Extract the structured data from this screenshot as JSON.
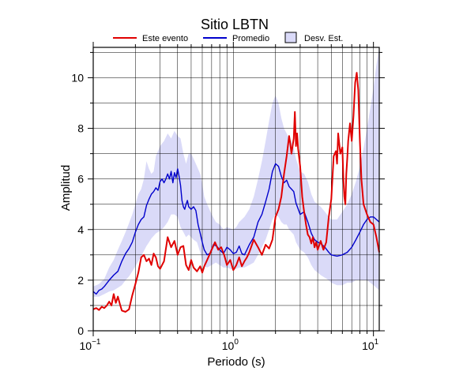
{
  "chart_data": {
    "type": "line",
    "title": "Sitio LBTN",
    "xlabel": "Periodo (s)",
    "ylabel": "Amplitud",
    "x_scale": "log",
    "xlim": [
      0.1,
      11
    ],
    "ylim": [
      0,
      11.2
    ],
    "x_ticks": [
      {
        "value": 0.1,
        "base": "10",
        "exp": "−1"
      },
      {
        "value": 1,
        "base": "10",
        "exp": "0"
      },
      {
        "value": 10,
        "base": "10",
        "exp": "1"
      }
    ],
    "y_ticks": [
      "0",
      "2",
      "4",
      "6",
      "8",
      "10"
    ],
    "grid": true,
    "legend_position": "top",
    "legend": [
      {
        "label": "Este evento",
        "kind": "line",
        "color": "#e00000"
      },
      {
        "label": "Promedio",
        "kind": "line",
        "color": "#0000cc"
      },
      {
        "label": "Desv. Est.",
        "kind": "band",
        "color": "#dadaf8"
      }
    ],
    "series": [
      {
        "name": "Este evento",
        "color": "#e00000",
        "points": [
          [
            0.1,
            0.85
          ],
          [
            0.105,
            0.9
          ],
          [
            0.11,
            0.82
          ],
          [
            0.115,
            0.95
          ],
          [
            0.12,
            0.9
          ],
          [
            0.125,
            1.0
          ],
          [
            0.13,
            1.15
          ],
          [
            0.135,
            1.0
          ],
          [
            0.14,
            1.45
          ],
          [
            0.145,
            1.1
          ],
          [
            0.15,
            1.35
          ],
          [
            0.155,
            1.05
          ],
          [
            0.16,
            0.8
          ],
          [
            0.17,
            0.75
          ],
          [
            0.18,
            0.85
          ],
          [
            0.19,
            1.4
          ],
          [
            0.2,
            1.85
          ],
          [
            0.21,
            2.3
          ],
          [
            0.22,
            2.9
          ],
          [
            0.23,
            3.0
          ],
          [
            0.24,
            2.75
          ],
          [
            0.25,
            2.85
          ],
          [
            0.26,
            2.6
          ],
          [
            0.27,
            3.05
          ],
          [
            0.28,
            2.9
          ],
          [
            0.29,
            2.55
          ],
          [
            0.3,
            2.45
          ],
          [
            0.32,
            2.75
          ],
          [
            0.34,
            3.7
          ],
          [
            0.36,
            3.3
          ],
          [
            0.38,
            3.55
          ],
          [
            0.4,
            3.0
          ],
          [
            0.42,
            3.3
          ],
          [
            0.44,
            3.35
          ],
          [
            0.46,
            2.6
          ],
          [
            0.48,
            2.4
          ],
          [
            0.5,
            2.8
          ],
          [
            0.52,
            2.5
          ],
          [
            0.55,
            2.35
          ],
          [
            0.58,
            2.55
          ],
          [
            0.6,
            2.3
          ],
          [
            0.62,
            2.55
          ],
          [
            0.65,
            2.8
          ],
          [
            0.7,
            3.2
          ],
          [
            0.74,
            3.5
          ],
          [
            0.78,
            3.2
          ],
          [
            0.82,
            3.3
          ],
          [
            0.86,
            3.0
          ],
          [
            0.9,
            2.6
          ],
          [
            0.95,
            2.8
          ],
          [
            1.0,
            2.4
          ],
          [
            1.05,
            2.6
          ],
          [
            1.1,
            2.9
          ],
          [
            1.15,
            2.55
          ],
          [
            1.2,
            2.75
          ],
          [
            1.25,
            2.9
          ],
          [
            1.3,
            3.1
          ],
          [
            1.4,
            3.6
          ],
          [
            1.5,
            3.3
          ],
          [
            1.6,
            3.0
          ],
          [
            1.7,
            3.4
          ],
          [
            1.8,
            3.25
          ],
          [
            1.9,
            3.6
          ],
          [
            2.0,
            4.5
          ],
          [
            2.1,
            4.8
          ],
          [
            2.2,
            5.3
          ],
          [
            2.3,
            6.2
          ],
          [
            2.4,
            6.9
          ],
          [
            2.5,
            7.7
          ],
          [
            2.55,
            7.4
          ],
          [
            2.6,
            7.0
          ],
          [
            2.7,
            7.6
          ],
          [
            2.75,
            8.65
          ],
          [
            2.8,
            7.3
          ],
          [
            2.85,
            7.8
          ],
          [
            2.9,
            7.2
          ],
          [
            3.0,
            6.5
          ],
          [
            3.1,
            5.3
          ],
          [
            3.2,
            4.7
          ],
          [
            3.3,
            4.2
          ],
          [
            3.4,
            3.8
          ],
          [
            3.5,
            3.7
          ],
          [
            3.6,
            3.45
          ],
          [
            3.7,
            3.7
          ],
          [
            3.8,
            3.3
          ],
          [
            3.9,
            3.5
          ],
          [
            4.0,
            3.2
          ],
          [
            4.2,
            3.55
          ],
          [
            4.4,
            3.2
          ],
          [
            4.6,
            3.5
          ],
          [
            4.8,
            4.5
          ],
          [
            5.0,
            5.2
          ],
          [
            5.2,
            6.9
          ],
          [
            5.4,
            7.1
          ],
          [
            5.5,
            6.6
          ],
          [
            5.6,
            7.8
          ],
          [
            5.8,
            7.0
          ],
          [
            6.0,
            7.25
          ],
          [
            6.1,
            6.0
          ],
          [
            6.2,
            5.3
          ],
          [
            6.3,
            5.0
          ],
          [
            6.4,
            6.2
          ],
          [
            6.5,
            6.8
          ],
          [
            6.6,
            7.5
          ],
          [
            6.8,
            8.2
          ],
          [
            7.0,
            7.5
          ],
          [
            7.2,
            8.5
          ],
          [
            7.4,
            9.8
          ],
          [
            7.6,
            10.2
          ],
          [
            7.8,
            9.5
          ],
          [
            8.0,
            7.5
          ],
          [
            8.2,
            6.0
          ],
          [
            8.5,
            5.0
          ],
          [
            9.0,
            4.6
          ],
          [
            9.5,
            4.3
          ],
          [
            10.0,
            4.2
          ],
          [
            10.5,
            3.7
          ],
          [
            11.0,
            3.1
          ]
        ]
      },
      {
        "name": "Promedio",
        "color": "#0000cc",
        "points": [
          [
            0.1,
            1.55
          ],
          [
            0.105,
            1.45
          ],
          [
            0.11,
            1.6
          ],
          [
            0.115,
            1.65
          ],
          [
            0.12,
            1.75
          ],
          [
            0.13,
            2.0
          ],
          [
            0.14,
            2.2
          ],
          [
            0.15,
            2.35
          ],
          [
            0.16,
            2.75
          ],
          [
            0.17,
            3.05
          ],
          [
            0.18,
            3.25
          ],
          [
            0.19,
            3.5
          ],
          [
            0.2,
            3.9
          ],
          [
            0.21,
            4.2
          ],
          [
            0.22,
            4.4
          ],
          [
            0.23,
            4.5
          ],
          [
            0.24,
            4.95
          ],
          [
            0.25,
            5.2
          ],
          [
            0.26,
            5.4
          ],
          [
            0.27,
            5.5
          ],
          [
            0.28,
            5.65
          ],
          [
            0.29,
            5.55
          ],
          [
            0.3,
            5.9
          ],
          [
            0.31,
            6.0
          ],
          [
            0.32,
            5.85
          ],
          [
            0.33,
            6.0
          ],
          [
            0.34,
            6.2
          ],
          [
            0.35,
            6.0
          ],
          [
            0.36,
            6.3
          ],
          [
            0.37,
            5.85
          ],
          [
            0.38,
            6.25
          ],
          [
            0.39,
            6.05
          ],
          [
            0.4,
            6.4
          ],
          [
            0.41,
            6.1
          ],
          [
            0.42,
            5.75
          ],
          [
            0.43,
            5.15
          ],
          [
            0.44,
            4.9
          ],
          [
            0.45,
            4.8
          ],
          [
            0.46,
            5.0
          ],
          [
            0.47,
            5.15
          ],
          [
            0.48,
            4.9
          ],
          [
            0.5,
            4.8
          ],
          [
            0.52,
            4.9
          ],
          [
            0.54,
            4.75
          ],
          [
            0.56,
            4.2
          ],
          [
            0.58,
            3.85
          ],
          [
            0.6,
            3.5
          ],
          [
            0.62,
            3.2
          ],
          [
            0.65,
            3.0
          ],
          [
            0.68,
            3.05
          ],
          [
            0.72,
            3.4
          ],
          [
            0.76,
            3.35
          ],
          [
            0.8,
            3.2
          ],
          [
            0.85,
            3.05
          ],
          [
            0.9,
            3.3
          ],
          [
            0.95,
            3.2
          ],
          [
            1.0,
            3.05
          ],
          [
            1.05,
            3.1
          ],
          [
            1.1,
            3.35
          ],
          [
            1.15,
            3.05
          ],
          [
            1.2,
            3.0
          ],
          [
            1.25,
            3.2
          ],
          [
            1.3,
            3.4
          ],
          [
            1.4,
            3.7
          ],
          [
            1.5,
            4.3
          ],
          [
            1.6,
            4.6
          ],
          [
            1.7,
            5.1
          ],
          [
            1.8,
            5.6
          ],
          [
            1.9,
            6.3
          ],
          [
            2.0,
            6.6
          ],
          [
            2.1,
            6.5
          ],
          [
            2.2,
            6.1
          ],
          [
            2.3,
            5.85
          ],
          [
            2.4,
            5.95
          ],
          [
            2.5,
            5.7
          ],
          [
            2.6,
            5.6
          ],
          [
            2.7,
            5.5
          ],
          [
            2.8,
            5.05
          ],
          [
            3.0,
            4.6
          ],
          [
            3.2,
            4.7
          ],
          [
            3.4,
            4.3
          ],
          [
            3.6,
            3.85
          ],
          [
            3.8,
            3.6
          ],
          [
            4.0,
            3.5
          ],
          [
            4.2,
            3.45
          ],
          [
            4.5,
            3.3
          ],
          [
            4.8,
            3.1
          ],
          [
            5.0,
            3.0
          ],
          [
            5.5,
            2.95
          ],
          [
            6.0,
            3.0
          ],
          [
            6.5,
            3.1
          ],
          [
            7.0,
            3.3
          ],
          [
            7.5,
            3.6
          ],
          [
            8.0,
            3.9
          ],
          [
            8.5,
            4.2
          ],
          [
            9.0,
            4.4
          ],
          [
            9.5,
            4.5
          ],
          [
            10.0,
            4.5
          ],
          [
            10.5,
            4.4
          ],
          [
            11.0,
            4.3
          ]
        ]
      }
    ],
    "std_band": {
      "name": "Desv. Est.",
      "color": "#dadaf8",
      "points": [
        [
          0.1,
          1.35,
          1.75
        ],
        [
          0.11,
          1.35,
          1.85
        ],
        [
          0.12,
          1.45,
          2.05
        ],
        [
          0.13,
          1.55,
          2.5
        ],
        [
          0.14,
          1.6,
          2.8
        ],
        [
          0.15,
          1.7,
          3.2
        ],
        [
          0.16,
          1.8,
          3.55
        ],
        [
          0.17,
          2.0,
          3.9
        ],
        [
          0.18,
          2.15,
          4.25
        ],
        [
          0.19,
          2.35,
          4.6
        ],
        [
          0.2,
          2.55,
          5.0
        ],
        [
          0.21,
          2.75,
          5.4
        ],
        [
          0.22,
          2.95,
          5.6
        ],
        [
          0.23,
          3.15,
          6.0
        ],
        [
          0.24,
          3.35,
          6.7
        ],
        [
          0.25,
          3.5,
          6.4
        ],
        [
          0.26,
          3.65,
          6.2
        ],
        [
          0.27,
          3.75,
          6.3
        ],
        [
          0.28,
          3.85,
          6.9
        ],
        [
          0.3,
          3.95,
          7.3
        ],
        [
          0.32,
          4.1,
          7.5
        ],
        [
          0.34,
          4.3,
          7.8
        ],
        [
          0.36,
          4.6,
          7.6
        ],
        [
          0.38,
          4.6,
          7.9
        ],
        [
          0.4,
          4.5,
          7.7
        ],
        [
          0.42,
          4.1,
          7.6
        ],
        [
          0.44,
          3.9,
          7.0
        ],
        [
          0.46,
          3.7,
          6.6
        ],
        [
          0.48,
          3.8,
          7.0
        ],
        [
          0.5,
          3.7,
          7.0
        ],
        [
          0.52,
          3.6,
          6.8
        ],
        [
          0.55,
          3.5,
          6.5
        ],
        [
          0.58,
          3.1,
          6.2
        ],
        [
          0.6,
          2.8,
          5.8
        ],
        [
          0.62,
          2.55,
          5.3
        ],
        [
          0.65,
          2.5,
          5.0
        ],
        [
          0.7,
          2.6,
          4.6
        ],
        [
          0.75,
          2.7,
          4.3
        ],
        [
          0.8,
          2.6,
          4.2
        ],
        [
          0.85,
          2.5,
          4.0
        ],
        [
          0.9,
          2.5,
          4.1
        ],
        [
          0.95,
          2.45,
          4.05
        ],
        [
          1.0,
          2.4,
          4.0
        ],
        [
          1.05,
          2.45,
          4.1
        ],
        [
          1.1,
          2.5,
          4.3
        ],
        [
          1.2,
          2.5,
          4.5
        ],
        [
          1.3,
          2.6,
          4.8
        ],
        [
          1.4,
          2.7,
          5.3
        ],
        [
          1.5,
          3.0,
          6.0
        ],
        [
          1.6,
          3.3,
          6.7
        ],
        [
          1.7,
          3.6,
          7.5
        ],
        [
          1.8,
          4.0,
          8.3
        ],
        [
          1.9,
          4.4,
          9.0
        ],
        [
          2.0,
          4.6,
          9.3
        ],
        [
          2.1,
          4.5,
          9.0
        ],
        [
          2.2,
          4.3,
          8.4
        ],
        [
          2.3,
          4.2,
          8.0
        ],
        [
          2.4,
          4.2,
          7.8
        ],
        [
          2.5,
          4.0,
          7.6
        ],
        [
          2.6,
          3.9,
          7.5
        ],
        [
          2.7,
          3.8,
          7.2
        ],
        [
          2.8,
          3.5,
          6.8
        ],
        [
          3.0,
          3.2,
          6.3
        ],
        [
          3.2,
          3.1,
          6.2
        ],
        [
          3.4,
          2.9,
          5.9
        ],
        [
          3.6,
          2.6,
          5.4
        ],
        [
          3.8,
          2.4,
          5.1
        ],
        [
          4.0,
          2.3,
          5.0
        ],
        [
          4.2,
          2.2,
          4.9
        ],
        [
          4.5,
          2.1,
          4.7
        ],
        [
          4.8,
          2.0,
          4.5
        ],
        [
          5.0,
          1.9,
          4.4
        ],
        [
          5.5,
          1.8,
          4.4
        ],
        [
          6.0,
          1.8,
          4.7
        ],
        [
          6.5,
          1.9,
          5.0
        ],
        [
          7.0,
          1.9,
          5.4
        ],
        [
          7.5,
          2.0,
          5.9
        ],
        [
          8.0,
          2.0,
          6.5
        ],
        [
          8.5,
          2.0,
          7.2
        ],
        [
          9.0,
          2.0,
          8.0
        ],
        [
          9.5,
          1.9,
          8.8
        ],
        [
          10.0,
          1.8,
          9.6
        ],
        [
          10.5,
          1.7,
          10.5
        ],
        [
          11.0,
          1.6,
          11.2
        ]
      ]
    }
  }
}
